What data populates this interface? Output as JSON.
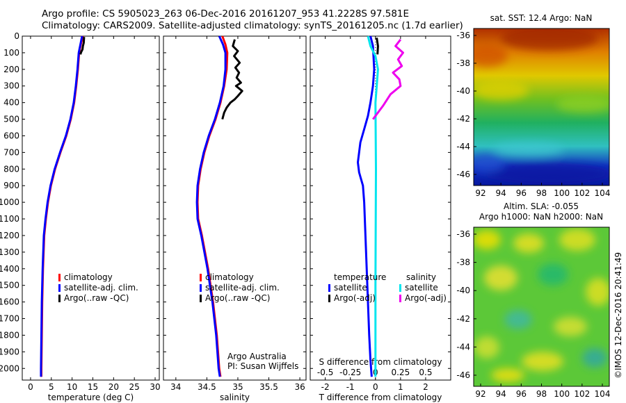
{
  "header": {
    "line1": "Argo profile: CS 5905023_263 06-Dec-2016 20161207_953 41.2228S 97.581E",
    "line2": "Climatology: CARS2009. Satellite-adjusted climatology: synTS_20161205.nc (1.7d earlier)"
  },
  "colors": {
    "climatology": "#ff0000",
    "satellite": "#0000ff",
    "argo": "#000000",
    "sat_salinity": "#00e5ee",
    "argo_salinity": "#ee00ee"
  },
  "chart_data": [
    {
      "type": "line",
      "id": "temperature",
      "xlabel": "temperature (deg C)",
      "xlim": [
        -2,
        31
      ],
      "ylim": [
        2070,
        0
      ],
      "xticks": [
        0,
        5,
        10,
        15,
        20,
        25,
        30
      ],
      "yticks": [
        0,
        100,
        200,
        300,
        400,
        500,
        600,
        700,
        800,
        900,
        1000,
        1100,
        1200,
        1300,
        1400,
        1500,
        1600,
        1700,
        1800,
        1900,
        2000
      ],
      "legend": [
        "climatology",
        "satellite-adj. clim.",
        "Argo(..raw -QC)"
      ],
      "series": [
        {
          "name": "climatology",
          "color": "#ff0000",
          "x": [
            12.6,
            12.1,
            11.7,
            11.4,
            11.0,
            10.5,
            9.7,
            8.6,
            7.2,
            5.9,
            4.9,
            4.2,
            3.7,
            3.3,
            3.0,
            2.8,
            2.7,
            2.6,
            2.6
          ],
          "y": [
            0,
            50,
            100,
            200,
            300,
            400,
            500,
            600,
            700,
            800,
            900,
            1000,
            1100,
            1200,
            1400,
            1600,
            1800,
            2000,
            2050
          ]
        },
        {
          "name": "satellite-adj. clim.",
          "color": "#0000ff",
          "x": [
            12.4,
            12.0,
            11.6,
            11.3,
            10.9,
            10.4,
            9.6,
            8.5,
            7.1,
            5.8,
            4.8,
            4.1,
            3.6,
            3.2,
            2.9,
            2.7,
            2.6,
            2.5,
            2.5
          ],
          "y": [
            0,
            50,
            100,
            200,
            300,
            400,
            500,
            600,
            700,
            800,
            900,
            1000,
            1100,
            1200,
            1400,
            1600,
            1800,
            2000,
            2050
          ]
        },
        {
          "name": "Argo(..raw -QC)",
          "color": "#000000",
          "x": [
            12.9,
            12.8,
            12.6,
            12.5,
            12.2,
            12.0
          ],
          "y": [
            5,
            40,
            60,
            80,
            95,
            110
          ]
        }
      ]
    },
    {
      "type": "line",
      "id": "salinity",
      "xlabel": "salinity",
      "xlim": [
        33.8,
        36.1
      ],
      "ylim": [
        2070,
        0
      ],
      "xticks": [
        34,
        34.5,
        35,
        35.5,
        36
      ],
      "xticklabels": [
        "34",
        "34.5",
        "35",
        "35.5",
        "36"
      ],
      "legend": [
        "climatology",
        "satellite-adj. clim.",
        "Argo(..raw -QC)"
      ],
      "annotation": [
        "Argo Australia",
        "PI: Susan Wijffels"
      ],
      "series": [
        {
          "name": "climatology",
          "color": "#ff0000",
          "x": [
            34.75,
            34.8,
            34.83,
            34.82,
            34.78,
            34.72,
            34.64,
            34.54,
            34.46,
            34.4,
            34.36,
            34.35,
            34.36,
            34.42,
            34.52,
            34.6,
            34.66,
            34.7,
            34.72
          ],
          "y": [
            0,
            50,
            100,
            200,
            300,
            400,
            500,
            600,
            700,
            800,
            900,
            1000,
            1100,
            1200,
            1400,
            1600,
            1800,
            2000,
            2050
          ]
        },
        {
          "name": "satellite-adj. clim.",
          "color": "#0000ff",
          "x": [
            34.7,
            34.76,
            34.8,
            34.8,
            34.77,
            34.71,
            34.63,
            34.53,
            34.45,
            34.39,
            34.35,
            34.34,
            34.35,
            34.41,
            34.51,
            34.59,
            34.65,
            34.69,
            34.71
          ],
          "y": [
            0,
            50,
            100,
            200,
            300,
            400,
            500,
            600,
            700,
            800,
            900,
            1000,
            1100,
            1200,
            1400,
            1600,
            1800,
            2000,
            2050
          ]
        },
        {
          "name": "Argo(..raw -QC)",
          "color": "#000000",
          "x": [
            34.95,
            34.92,
            35.0,
            34.94,
            35.03,
            34.96,
            35.02,
            34.98,
            35.05,
            34.97,
            35.07,
            35.0,
            34.95,
            34.88,
            34.82,
            34.78,
            34.75
          ],
          "y": [
            20,
            60,
            90,
            120,
            160,
            190,
            220,
            250,
            280,
            300,
            330,
            360,
            380,
            400,
            430,
            460,
            500
          ]
        }
      ]
    },
    {
      "type": "line",
      "id": "difference",
      "xlabel": "T difference from climatology",
      "xlabel2": "S difference from climatology",
      "xlim": [
        -2.6,
        3.0
      ],
      "xticks": [
        -2,
        -1,
        0,
        1,
        2
      ],
      "xticklabels": [
        "-2",
        "-1",
        "0",
        "1",
        "2"
      ],
      "sticks": [
        -0.5,
        -0.25,
        0,
        0.25,
        0.5
      ],
      "sticklabels": [
        "-0.5",
        "-0.25",
        "0",
        "0.25",
        "0.5"
      ],
      "legend_temperature": [
        "temperature",
        "satellite",
        "Argo(-adj)"
      ],
      "legend_salinity": [
        "salinity",
        "satellite",
        "Argo(-adj)"
      ],
      "series": [
        {
          "name": "satellite",
          "color": "#0000ff",
          "x": [
            -0.2,
            -0.1,
            -0.05,
            -0.1,
            -0.2,
            -0.3,
            -0.45,
            -0.6,
            -0.7,
            -0.65,
            -0.5,
            -0.45,
            -0.4,
            -0.35,
            -0.3,
            -0.25,
            -0.2,
            -0.15
          ],
          "y": [
            0,
            60,
            200,
            300,
            400,
            480,
            560,
            640,
            760,
            820,
            900,
            1000,
            1200,
            1400,
            1600,
            1800,
            1950,
            2050
          ]
        },
        {
          "name": "salinity satellite",
          "color": "#00e5ee",
          "x": [
            -0.3,
            -0.2,
            0.0,
            0.1,
            0.05,
            0.0,
            0.02,
            0.0,
            0.0
          ],
          "y": [
            0,
            60,
            120,
            200,
            300,
            400,
            800,
            1500,
            2050
          ]
        },
        {
          "name": "temperature Argo(-adj)",
          "color": "#000000",
          "x": [
            0.05,
            0.1,
            0.08
          ],
          "y": [
            10,
            60,
            110
          ]
        },
        {
          "name": "salinity Argo(-adj)",
          "color": "#ee00ee",
          "x": [
            1.0,
            0.8,
            1.1,
            0.9,
            1.05,
            0.7,
            0.95,
            1.0,
            0.6,
            0.3,
            -0.1
          ],
          "y": [
            20,
            60,
            100,
            140,
            180,
            220,
            260,
            300,
            350,
            420,
            500
          ]
        }
      ]
    }
  ],
  "maps": {
    "top": {
      "title": "sat. SST: 12.4 Argo: NaN",
      "yticks": [
        "-36",
        "-38",
        "-40",
        "-42",
        "-44",
        "-46"
      ],
      "xticks": [
        "92",
        "94",
        "96",
        "98",
        "100",
        "102",
        "104"
      ]
    },
    "bottom": {
      "title1": "Altim. SLA: -0.055",
      "title2": "Argo h1000: NaN h2000: NaN",
      "yticks": [
        "-36",
        "-38",
        "-40",
        "-42",
        "-44",
        "-46"
      ],
      "xticks": [
        "92",
        "94",
        "96",
        "98",
        "100",
        "102",
        "104"
      ]
    }
  },
  "footer": {
    "stamp": "©IMOS 12-Dec-2016 20:41:49"
  }
}
